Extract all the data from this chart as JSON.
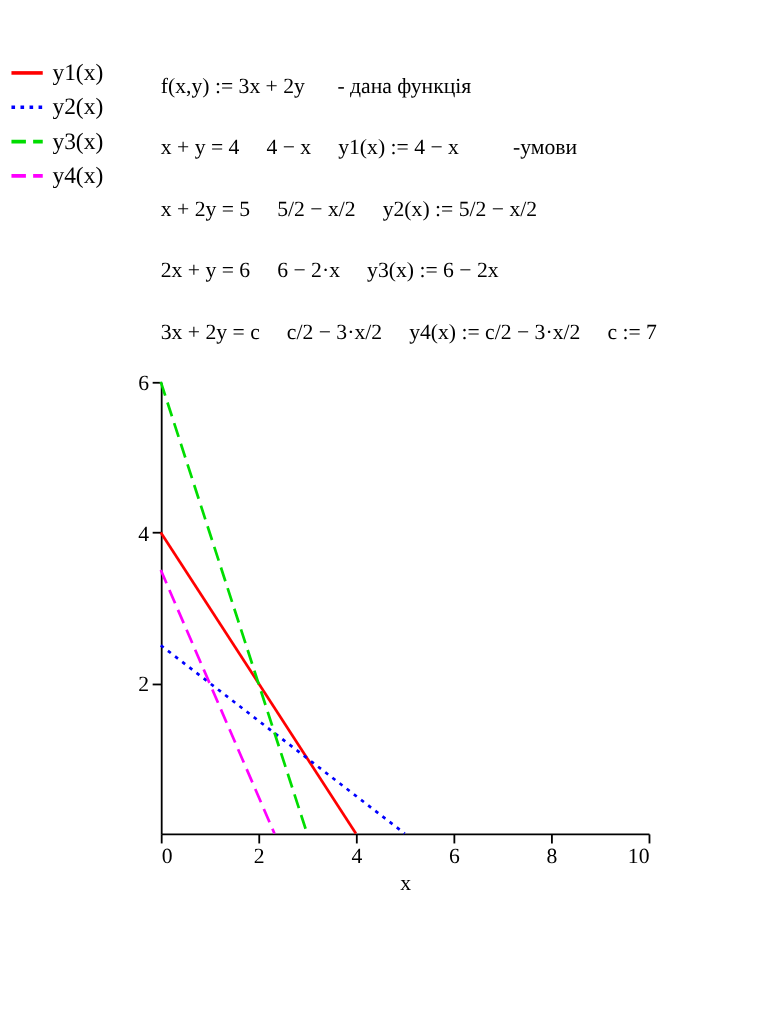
{
  "chart_data": {
    "type": "line",
    "annotations": [
      "f(x,y) := 3x + 2y      - дана функція",
      "x + y = 4     4 − x     y1(x) := 4 − x          -умови",
      "x + 2y = 5     5/2 − x/2     y2(x) := 5/2 − x/2",
      "2x + y = 6     6 − 2·x     y3(x) := 6 − 2x",
      "3x + 2y = c     c/2 − 3·x/2     y4(x) := c/2 − 3·x/2     c := 7"
    ],
    "xlabel": "x",
    "series": [
      {
        "name": "y1(x)",
        "color": "#ff0000",
        "line_style": "solid",
        "x": [
          0,
          4
        ],
        "values": [
          4,
          0
        ]
      },
      {
        "name": "y2(x)",
        "color": "#0000ff",
        "line_style": "dotted",
        "x": [
          0,
          5
        ],
        "values": [
          2.5,
          0
        ]
      },
      {
        "name": "y3(x)",
        "color": "#00dd00",
        "line_style": "dashed",
        "x": [
          0,
          3
        ],
        "values": [
          6,
          0
        ]
      },
      {
        "name": "y4(x)",
        "color": "#ff00ff",
        "line_style": "dashed",
        "x": [
          0,
          2.33
        ],
        "values": [
          3.5,
          0
        ]
      }
    ],
    "xlim": [
      0,
      10
    ],
    "xticks": [
      0,
      2,
      4,
      6,
      8,
      10
    ],
    "ylim": [
      0,
      6
    ],
    "yticks": [
      2,
      4,
      6
    ],
    "grid": false,
    "legend": "left"
  }
}
